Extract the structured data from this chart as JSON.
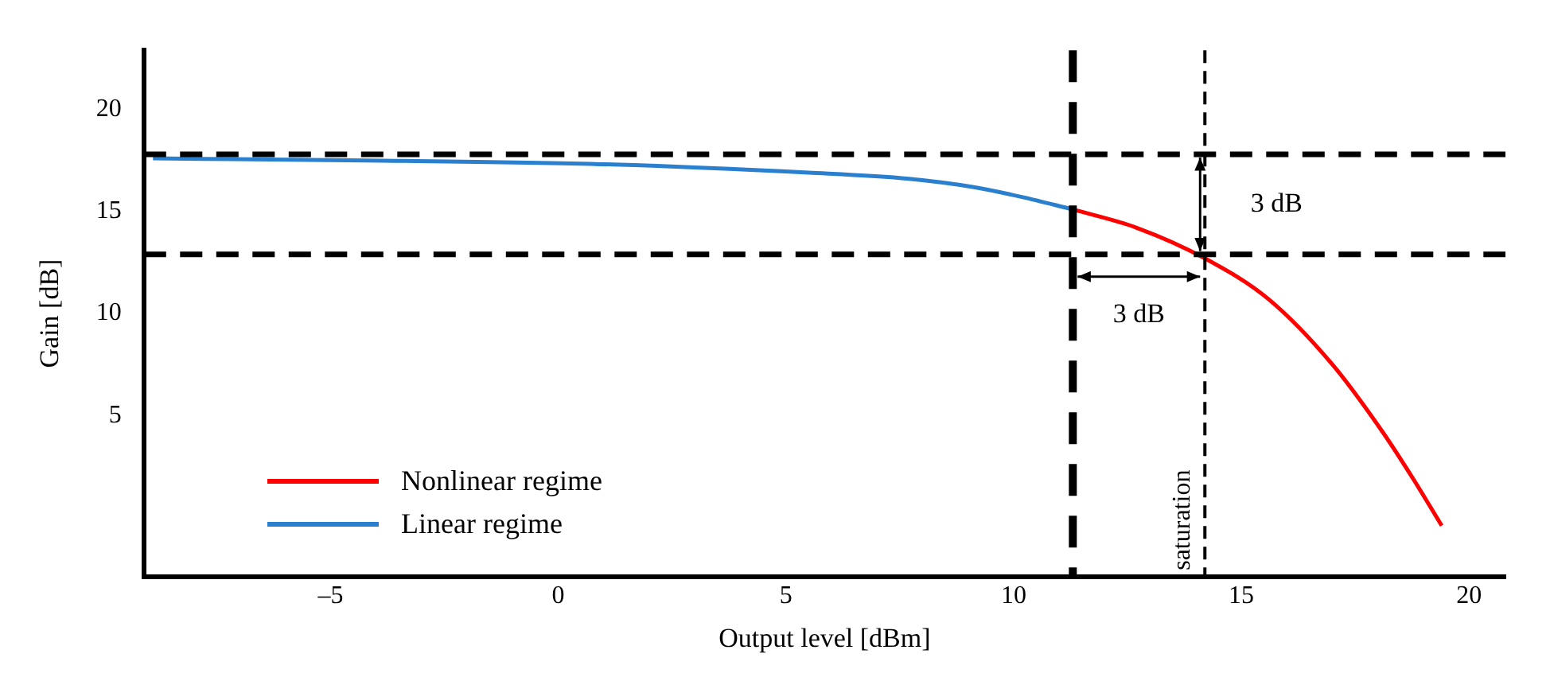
{
  "chart_data": {
    "type": "line",
    "xlabel": "Output level [dBm]",
    "ylabel": "Gain [dB]",
    "xlim": [
      -9.1,
      20.8
    ],
    "ylim": [
      -2.9,
      22.9
    ],
    "xticks": [
      {
        "value": -5,
        "label": "–5"
      },
      0,
      5,
      10,
      15,
      20
    ],
    "yticks": [
      5,
      10,
      15,
      20
    ],
    "series": [
      {
        "name": "Nonlinear regime",
        "color": "#ff0000",
        "x": [
          11.3,
          12.7,
          14.2,
          15.6,
          17.0,
          18.1,
          18.8,
          19.4
        ],
        "values": [
          15.1,
          14.2,
          12.7,
          10.7,
          7.5,
          4.2,
          1.8,
          -0.4
        ]
      },
      {
        "name": "Linear regime",
        "color": "#2a7fcf",
        "x": [
          -8.9,
          -4.2,
          1.2,
          5.5,
          7.7,
          9.1,
          10.2,
          11.3
        ],
        "values": [
          17.6,
          17.5,
          17.3,
          16.9,
          16.6,
          16.2,
          15.7,
          15.1
        ]
      }
    ],
    "ref_lines": [
      {
        "axis": "y",
        "value": 17.8,
        "label": null,
        "color": "#000000",
        "line_style": "dashed"
      },
      {
        "axis": "y",
        "value": 12.9,
        "label": null,
        "color": "#000000",
        "line_style": "dashed"
      },
      {
        "axis": "x",
        "value": 11.3,
        "label": null,
        "color": "#000000",
        "line_style": "dashed"
      },
      {
        "axis": "x",
        "value": 14.2,
        "label": "saturation",
        "color": "#000000",
        "line_style": "dashed"
      }
    ],
    "annotations": [
      "3 dB",
      "3 dB"
    ],
    "legend": "bottom left",
    "grid": false,
    "marker": "none",
    "line_style": "solid"
  }
}
